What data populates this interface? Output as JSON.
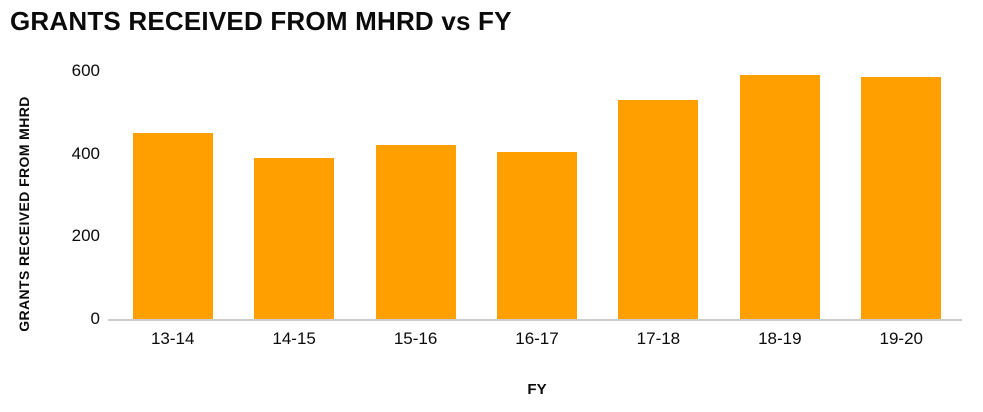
{
  "chart_data": {
    "type": "bar",
    "title": "GRANTS RECEIVED FROM MHRD vs FY",
    "xlabel": "FY",
    "ylabel": "GRANTS RECEIVED FROM MHRD",
    "categories": [
      "13-14",
      "14-15",
      "15-16",
      "16-17",
      "17-18",
      "18-19",
      "19-20"
    ],
    "values": [
      450,
      390,
      420,
      405,
      530,
      590,
      585
    ],
    "ylim": [
      0,
      600
    ],
    "yticks": [
      0,
      200,
      400,
      600
    ],
    "bar_color": "#FFA000",
    "axis_line_color": "#cccccc",
    "grid": false,
    "legend": false,
    "background": "#ffffff"
  }
}
